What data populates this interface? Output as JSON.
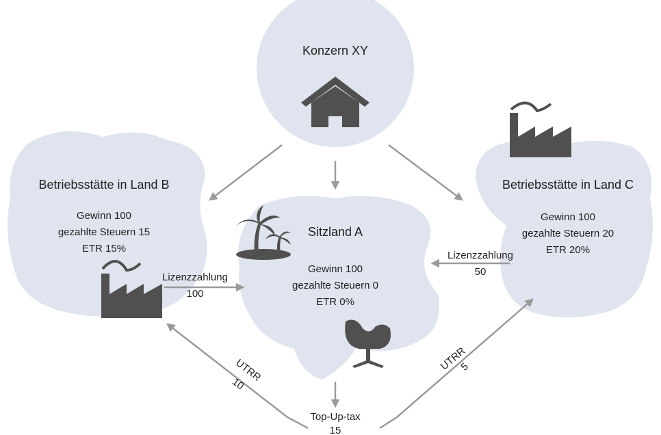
{
  "nodes": [
    {
      "label": "Konzern XY"
    },
    {
      "label": "Betriebsstätte in Land B",
      "lines": [
        "Gewinn 100",
        "gezahlte Steuern 15",
        "ETR 15%"
      ]
    },
    {
      "label": "Sitzland A",
      "lines": [
        "Gewinn 100",
        "gezahlte Steuern 0",
        "ETR 0%"
      ]
    },
    {
      "label": "Betriebsstätte in Land C",
      "lines": [
        "Gewinn 100",
        "gezahlte Steuern 20",
        "ETR 20%"
      ]
    }
  ],
  "edges": [
    {
      "label": "Lizenzzahlung",
      "value": 100
    },
    {
      "label": "Lizenzzahlung",
      "value": 50
    },
    {
      "label": "UTRR",
      "value": 10
    },
    {
      "label": "UTRR",
      "value": 5
    }
  ],
  "top_up": {
    "label": "Top-Up-tax",
    "value": 15
  }
}
